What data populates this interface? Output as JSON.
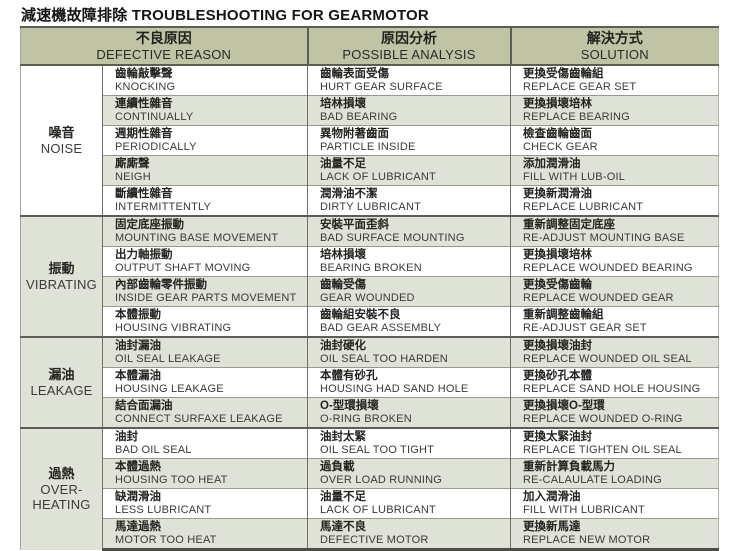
{
  "title": "減速機故障排除 TROUBLESHOOTING FOR GEARMOTOR",
  "colors": {
    "header_bg": "#c1c3a5",
    "shaded_row_bg": "#dee2d7",
    "dark_border": "#5c5e55",
    "row_line": "#96998b",
    "text": "#232320"
  },
  "table": {
    "headers": [
      {
        "zh": "不良原因",
        "en": "DEFECTIVE REASON"
      },
      {
        "zh": "原因分析",
        "en": "POSSIBLE ANALYSIS"
      },
      {
        "zh": "解決方式",
        "en": "SOLUTION"
      }
    ],
    "sections": [
      {
        "group_zh": "噪音",
        "group_en": "NOISE",
        "rows": [
          {
            "defect_zh": "齒輪敲擊聲",
            "defect_en": "KNOCKING",
            "cause_zh": "齒輪表面受傷",
            "cause_en": "HURT GEAR SURFACE",
            "solution_zh": "更換受傷齒輪組",
            "solution_en": "REPLACE GEAR SET"
          },
          {
            "defect_zh": "連續性雜音",
            "defect_en": "CONTINUALLY",
            "cause_zh": "培林損壞",
            "cause_en": "BAD BEARING",
            "solution_zh": "更換損壞培林",
            "solution_en": "REPLACE BEARING"
          },
          {
            "defect_zh": "週期性雜音",
            "defect_en": "PERIODICALLY",
            "cause_zh": "異物附著齒面",
            "cause_en": "PARTICLE INSIDE",
            "solution_zh": "檢查齒輪齒面",
            "solution_en": "CHECK GEAR"
          },
          {
            "defect_zh": "廝廝聲",
            "defect_en": "NEIGH",
            "cause_zh": "油量不足",
            "cause_en": "LACK OF LUBRICANT",
            "solution_zh": "添加潤滑油",
            "solution_en": "FILL WITH LUB-OIL"
          },
          {
            "defect_zh": "斷續性雜音",
            "defect_en": "INTERMITTENTLY",
            "cause_zh": "潤滑油不潔",
            "cause_en": "DIRTY LUBRICANT",
            "solution_zh": "更換新潤滑油",
            "solution_en": "REPLACE LUBRICANT"
          }
        ]
      },
      {
        "group_zh": "振動",
        "group_en": "VIBRATING",
        "rows": [
          {
            "defect_zh": "固定底座振動",
            "defect_en": "MOUNTING BASE MOVEMENT",
            "cause_zh": "安裝平面歪斜",
            "cause_en": "BAD SURFACE MOUNTING",
            "solution_zh": "重新調整固定底座",
            "solution_en": "RE-ADJUST MOUNTING BASE"
          },
          {
            "defect_zh": "出力軸振動",
            "defect_en": "OUTPUT SHAFT MOVING",
            "cause_zh": "培林損壞",
            "cause_en": "BEARING BROKEN",
            "solution_zh": "更換損壞培林",
            "solution_en": "REPLACE WOUNDED BEARING"
          },
          {
            "defect_zh": "內部齒輪零件振動",
            "defect_en": "INSIDE GEAR PARTS MOVEMENT",
            "cause_zh": "齒輪受傷",
            "cause_en": "GEAR WOUNDED",
            "solution_zh": "更換受傷齒輪",
            "solution_en": "REPLACE WOUNDED GEAR"
          },
          {
            "defect_zh": "本體振動",
            "defect_en": "HOUSING VIBRATING",
            "cause_zh": "齒輪組安裝不良",
            "cause_en": "BAD GEAR ASSEMBLY",
            "solution_zh": "重新調整齒輪組",
            "solution_en": "RE-ADJUST GEAR SET"
          }
        ]
      },
      {
        "group_zh": "漏油",
        "group_en": "LEAKAGE",
        "rows": [
          {
            "defect_zh": "油封漏油",
            "defect_en": "OIL SEAL LEAKAGE",
            "cause_zh": "油封硬化",
            "cause_en": "OIL SEAL TOO HARDEN",
            "solution_zh": "更換損壞油封",
            "solution_en": "REPLACE WOUNDED OIL SEAL"
          },
          {
            "defect_zh": "本體漏油",
            "defect_en": "HOUSING LEAKAGE",
            "cause_zh": "本體有砂孔",
            "cause_en": "HOUSING HAD SAND HOLE",
            "solution_zh": "更換砂孔本體",
            "solution_en": "REPLACE SAND HOLE HOUSING"
          },
          {
            "defect_zh": "結合面漏油",
            "defect_en": "CONNECT SURFAXE LEAKAGE",
            "cause_zh": "O-型環損壞",
            "cause_en": "O-RING BROKEN",
            "solution_zh": "更換損壞O-型環",
            "solution_en": "REPLACE WOUNDED O-RING"
          }
        ]
      },
      {
        "group_zh": "過熱",
        "group_en": "OVER-HEATING",
        "rows": [
          {
            "defect_zh": "油封",
            "defect_en": "BAD OIL SEAL",
            "cause_zh": "油封太緊",
            "cause_en": "OIL SEAL TOO TIGHT",
            "solution_zh": "更換太緊油封",
            "solution_en": "REPLACE TIGHTEN OIL SEAL"
          },
          {
            "defect_zh": "本體過熱",
            "defect_en": "HOUSING TOO HEAT",
            "cause_zh": "過負載",
            "cause_en": "OVER LOAD RUNNING",
            "solution_zh": "重新計算負載馬力",
            "solution_en": "RE-CALAULATE LOADING"
          },
          {
            "defect_zh": "缺潤滑油",
            "defect_en": "LESS LUBRICANT",
            "cause_zh": "油量不足",
            "cause_en": "LACK OF LUBRICANT",
            "solution_zh": "加入潤滑油",
            "solution_en": "FILL WITH LUBRICANT"
          },
          {
            "defect_zh": "馬達過熱",
            "defect_en": "MOTOR TOO HEAT",
            "cause_zh": "馬達不良",
            "cause_en": "DEFECTIVE MOTOR",
            "solution_zh": "更換新馬達",
            "solution_en": "REPLACE NEW MOTOR"
          }
        ]
      }
    ]
  }
}
